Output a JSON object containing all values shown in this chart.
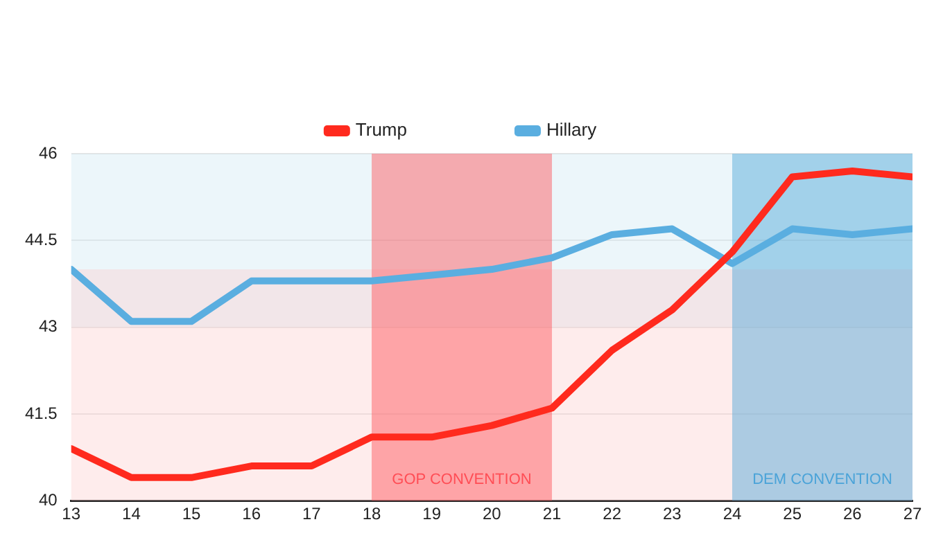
{
  "chart_data": {
    "type": "line",
    "x": [
      13,
      14,
      15,
      16,
      17,
      18,
      19,
      20,
      21,
      22,
      23,
      24,
      25,
      26,
      27
    ],
    "series": [
      {
        "name": "Trump",
        "color": "#ff2a1e",
        "values": [
          40.9,
          40.4,
          40.4,
          40.6,
          40.6,
          41.1,
          41.1,
          41.3,
          41.6,
          42.6,
          43.3,
          44.3,
          45.6,
          45.7,
          45.6
        ]
      },
      {
        "name": "Hillary",
        "color": "#5aaee0",
        "values": [
          44.0,
          43.1,
          43.1,
          43.8,
          43.8,
          43.8,
          43.9,
          44.0,
          44.2,
          44.6,
          44.7,
          44.1,
          44.7,
          44.6,
          44.7
        ]
      }
    ],
    "xlim": [
      13,
      27
    ],
    "xticks": [
      13,
      14,
      15,
      16,
      17,
      18,
      19,
      20,
      21,
      22,
      23,
      24,
      25,
      26,
      27
    ],
    "ylim": [
      40,
      46
    ],
    "yticks": [
      40,
      41.5,
      43,
      44.5,
      46
    ],
    "bands": [
      {
        "axis": "y",
        "from": 43,
        "to": 46,
        "label": null,
        "color": "#cfe8f3"
      },
      {
        "axis": "y",
        "from": 40,
        "to": 44,
        "label": null,
        "color": "#fcd0d0"
      },
      {
        "axis": "x",
        "from": 18,
        "to": 21,
        "label": "GOP CONVENTION",
        "color": "#ff4d55"
      },
      {
        "axis": "x",
        "from": 24,
        "to": 27,
        "label": "DEM CONVENTION",
        "color": "#4aa3d8"
      }
    ],
    "grid": "y",
    "legend": "top",
    "marker": "none",
    "line_style": "solid"
  }
}
